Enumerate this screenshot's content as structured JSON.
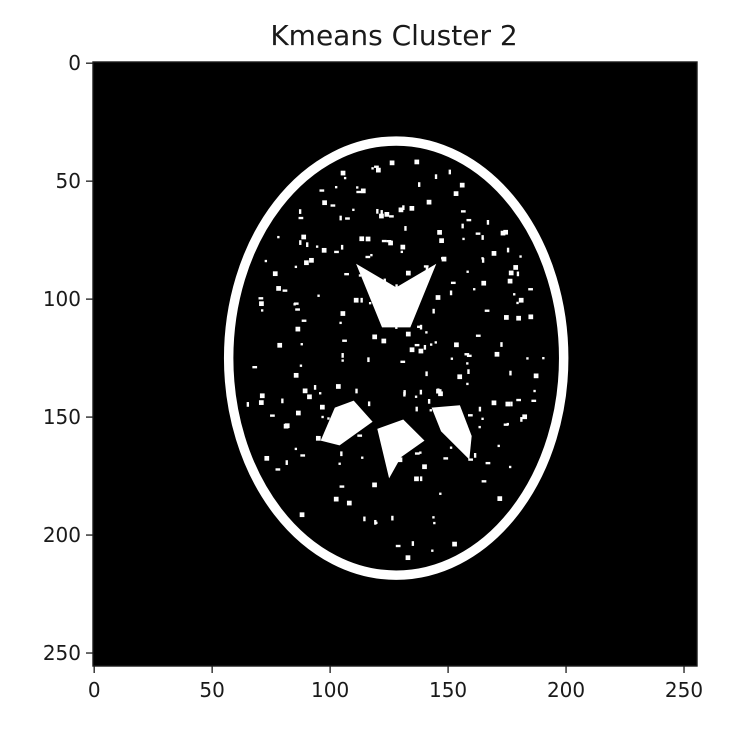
{
  "chart_data": {
    "type": "heatmap",
    "title": "Kmeans Cluster 2",
    "xlabel": "",
    "ylabel": "",
    "image_size": [
      256,
      256
    ],
    "xlim": [
      0,
      255
    ],
    "ylim": [
      255,
      0
    ],
    "x_ticks": [
      0,
      50,
      100,
      150,
      200,
      250
    ],
    "y_ticks": [
      0,
      50,
      100,
      150,
      200,
      250
    ],
    "colormap": "binary mask (black = 0, white = 1)",
    "background_color": "#000000",
    "foreground_color": "#ffffff",
    "regions": [
      {
        "name": "skull-outline",
        "center": [
          128,
          125
        ],
        "radii": [
          71,
          92
        ],
        "thickness": 4
      },
      {
        "name": "frontal-horn-ventricle",
        "points": [
          [
            111,
            85
          ],
          [
            128,
            95
          ],
          [
            145,
            85
          ],
          [
            134,
            112
          ],
          [
            122,
            112
          ]
        ]
      },
      {
        "name": "left-temporal-horn",
        "points": [
          [
            96,
            160
          ],
          [
            102,
            146
          ],
          [
            110,
            143
          ],
          [
            118,
            152
          ],
          [
            104,
            162
          ]
        ]
      },
      {
        "name": "right-temporal-horn",
        "points": [
          [
            143,
            146
          ],
          [
            155,
            145
          ],
          [
            160,
            158
          ],
          [
            159,
            168
          ],
          [
            147,
            156
          ]
        ]
      },
      {
        "name": "posterior-ventricle",
        "points": [
          [
            120,
            155
          ],
          [
            131,
            151
          ],
          [
            140,
            160
          ],
          [
            130,
            167
          ],
          [
            125,
            176
          ]
        ]
      }
    ]
  }
}
